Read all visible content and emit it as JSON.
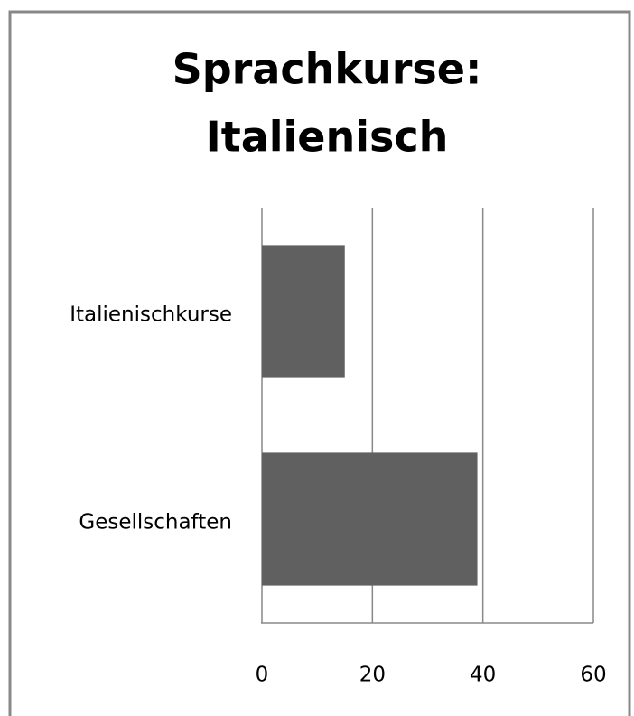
{
  "chart_data": {
    "type": "barh",
    "title": [
      "Sprachkurse:",
      "Italienisch"
    ],
    "categories": [
      "Italienischkurse",
      "Gesellschaften"
    ],
    "values": [
      15,
      39
    ],
    "color": "#606060",
    "xlim": [
      0,
      60
    ],
    "xticks": [
      0,
      20,
      40,
      60
    ],
    "grid": true
  }
}
